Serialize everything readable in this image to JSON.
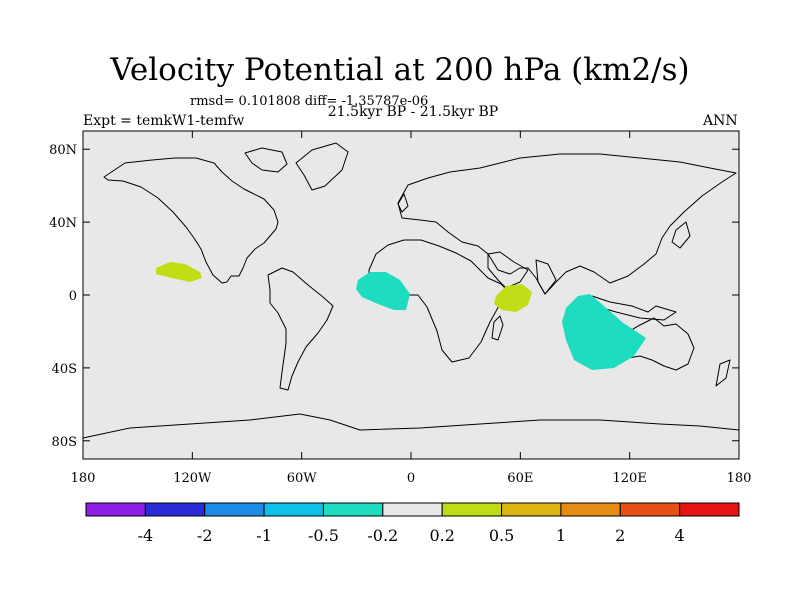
{
  "title": "Velocity Potential at 200 hPa (km2/s)",
  "stats": "rmsd= 0.101808 diff= -1.35787e-06",
  "subtitle": "21.5kyr BP - 21.5kyr BP",
  "left_label": "Expt = temkW1-temfw",
  "right_label": "ANN",
  "axes": {
    "lat_ticks": [
      {
        "value": 80,
        "label": "80N"
      },
      {
        "value": 40,
        "label": "40N"
      },
      {
        "value": 0,
        "label": "0"
      },
      {
        "value": -40,
        "label": "40S"
      },
      {
        "value": -80,
        "label": "80S"
      }
    ],
    "lon_ticks": [
      {
        "value": -180,
        "label": "180"
      },
      {
        "value": -120,
        "label": "120W"
      },
      {
        "value": -60,
        "label": "60W"
      },
      {
        "value": 0,
        "label": "0"
      },
      {
        "value": 60,
        "label": "60E"
      },
      {
        "value": 120,
        "label": "120E"
      },
      {
        "value": 180,
        "label": "180"
      }
    ]
  },
  "colorbar": {
    "colors": [
      "#8c1ee6",
      "#2a2ad6",
      "#1e8ce6",
      "#10c0e6",
      "#1edcc0",
      "#e8e8e8",
      "#c0dc14",
      "#dcb414",
      "#e68c14",
      "#e65014",
      "#e61414"
    ],
    "labels": [
      "-4",
      "-2",
      "-1",
      "-0.5",
      "-0.2",
      "0.2",
      "0.5",
      "1",
      "2",
      "4"
    ]
  },
  "anomalies": [
    {
      "name": "central-pacific-positive",
      "level": "0.2 to 0.5",
      "color": "#c0dc14"
    },
    {
      "name": "equatorial-atlantic-negative",
      "level": "-0.5 to -0.2",
      "color": "#1edcc0"
    },
    {
      "name": "western-indian-positive",
      "level": "0.2 to 0.5",
      "color": "#c0dc14"
    },
    {
      "name": "eastern-indian-negative",
      "level": "-0.5 to -0.2",
      "color": "#1edcc0"
    }
  ]
}
